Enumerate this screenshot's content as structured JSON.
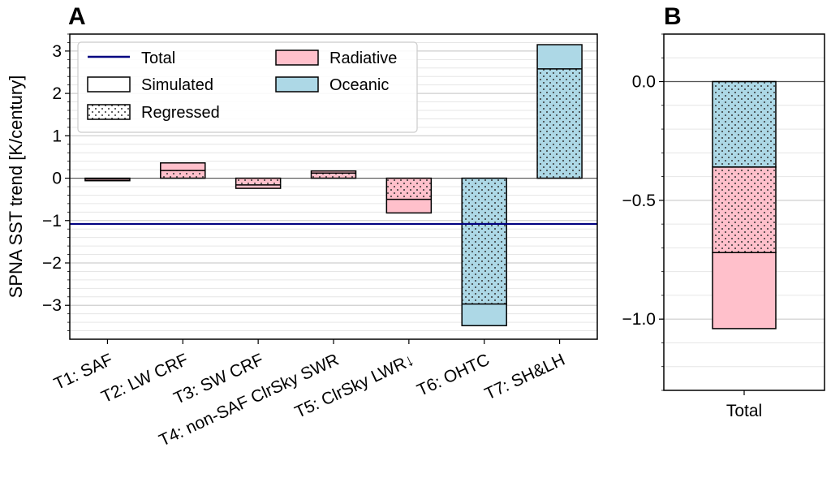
{
  "chart_data": [
    {
      "panel": "A",
      "type": "bar",
      "ylabel": "SPNA SST trend [K/century]",
      "ylim": [
        -3.8,
        3.4
      ],
      "yticks": [
        3,
        2,
        1,
        0,
        -1,
        -2,
        -3
      ],
      "ytick_labels": [
        "3",
        "2",
        "1",
        "0",
        "−1",
        "−2",
        "−3"
      ],
      "grid": "horizontal minor",
      "categories": [
        "T1: SAF",
        "T2: LW CRF",
        "T3: SW CRF",
        "T4: non-SAF ClrSky SWR",
        "T5: ClrSky LWR↓",
        "T6: OHTC",
        "T7: SH&LH"
      ],
      "series": [
        {
          "name": "Simulated",
          "values": [
            -0.06,
            0.36,
            -0.24,
            0.17,
            -0.82,
            -3.48,
            3.15
          ]
        },
        {
          "name": "Regressed",
          "values": [
            -0.02,
            0.18,
            -0.16,
            0.12,
            -0.5,
            -2.97,
            2.58
          ]
        }
      ],
      "category_group": [
        "Radiative",
        "Radiative",
        "Radiative",
        "Radiative",
        "Radiative",
        "Oceanic",
        "Oceanic"
      ],
      "total_line": {
        "name": "Total",
        "value": -1.08
      },
      "legend": {
        "placement": "top-left",
        "items": [
          "Total",
          "Simulated",
          "Regressed",
          "Radiative",
          "Oceanic"
        ]
      }
    },
    {
      "panel": "B",
      "type": "bar",
      "ylim": [
        -1.3,
        0.2
      ],
      "yticks": [
        0.0,
        -0.5,
        -1.0
      ],
      "ytick_labels": [
        "0.0",
        "−0.5",
        "−1.0"
      ],
      "grid": "horizontal minor",
      "categories": [
        "Total"
      ],
      "stack": [
        {
          "group": "Oceanic",
          "style": "Regressed",
          "from": 0.0,
          "to": -0.36
        },
        {
          "group": "Radiative",
          "style": "Regressed",
          "from": -0.36,
          "to": -0.72
        },
        {
          "group": "Radiative",
          "style": "Simulated",
          "from": -0.72,
          "to": -1.04
        }
      ]
    }
  ],
  "colors": {
    "radiative": "#ffc0cb",
    "oceanic": "#add8e6",
    "total_line": "#000080",
    "edge": "#000000",
    "grid": "#d9d9d9"
  }
}
